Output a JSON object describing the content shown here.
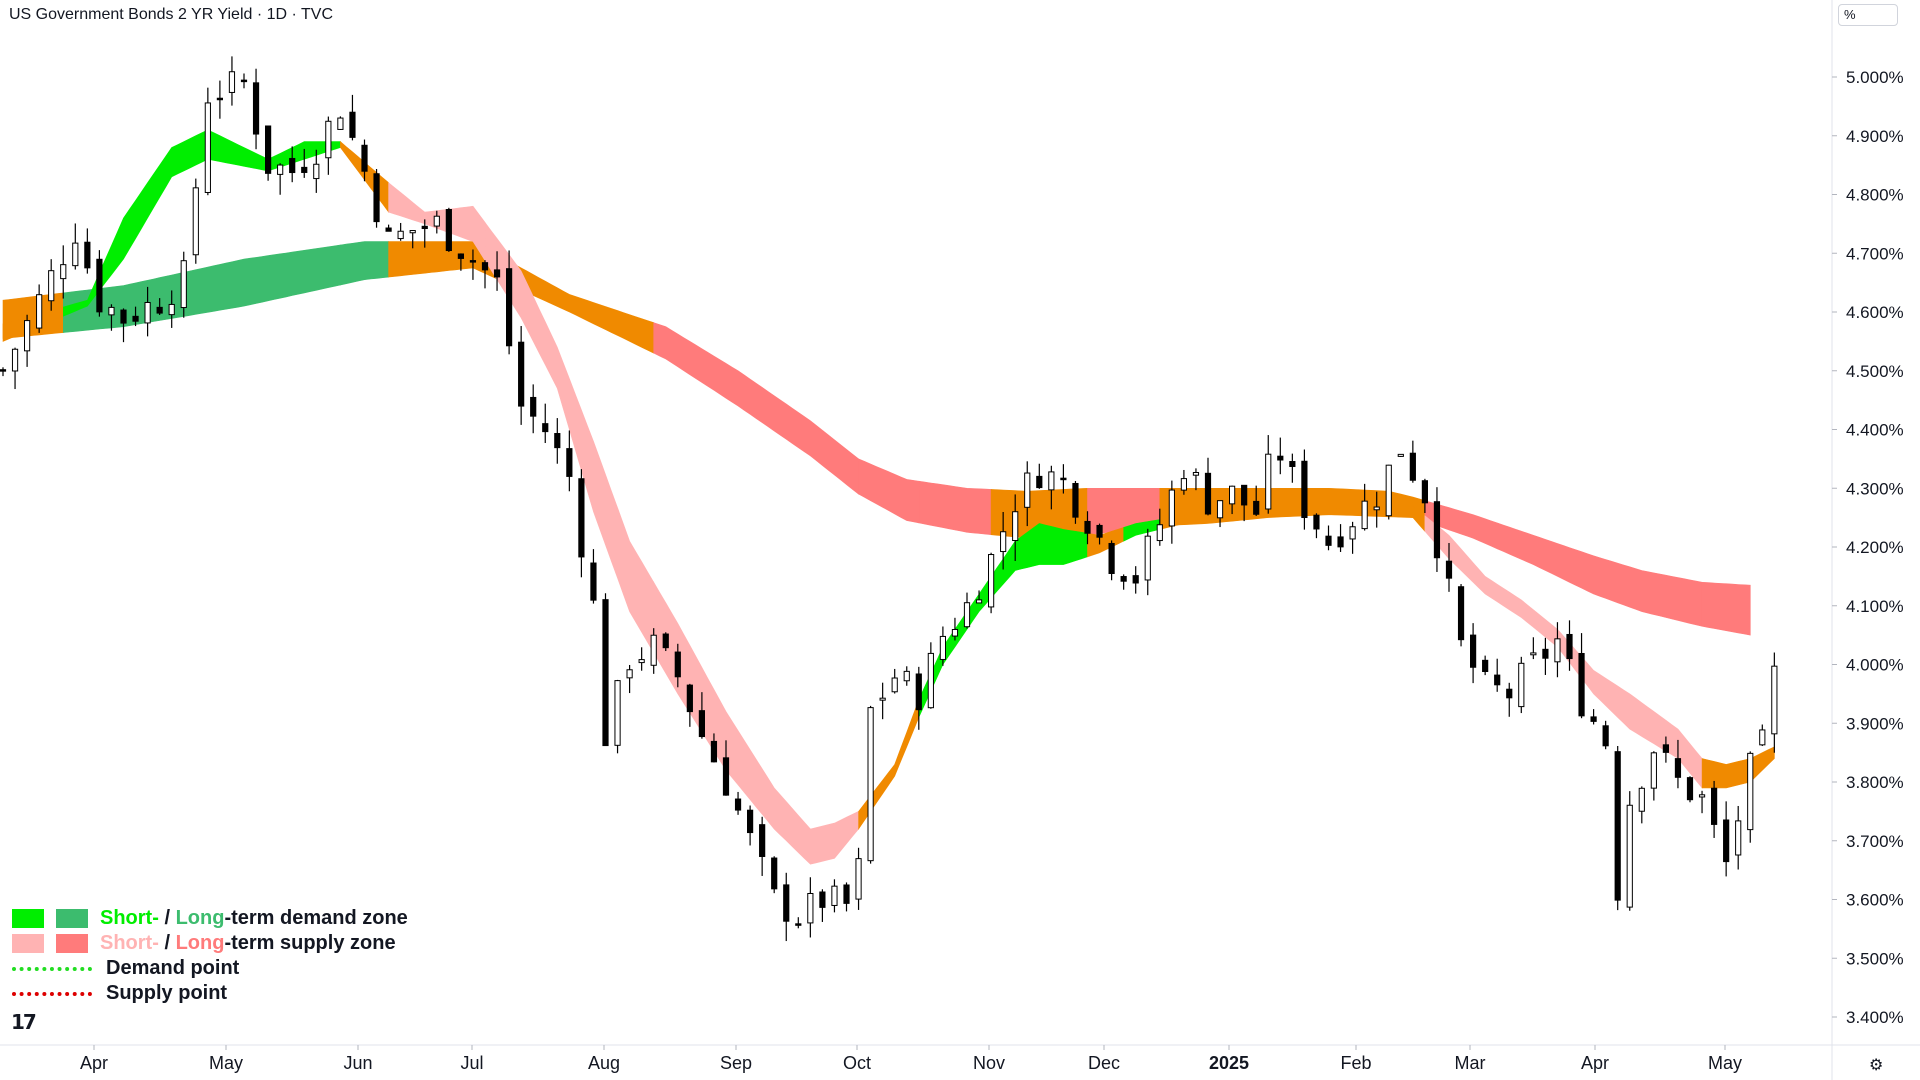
{
  "header": {
    "title": "US Government Bonds 2 YR Yield · 1D · TVC",
    "unit": "%"
  },
  "legend": {
    "demand_prefix_short": "Short-",
    "demand_sep": " / ",
    "demand_prefix_long": "Long",
    "demand_suffix": "-term demand zone",
    "supply_prefix_short": "Short-",
    "supply_sep": " / ",
    "supply_prefix_long": "Long",
    "supply_suffix": "-term supply zone",
    "demand_point": "Demand point",
    "supply_point": "Supply point"
  },
  "logo_text": "17",
  "settings_icon": "gear-icon",
  "colors": {
    "short_demand": "#00ee00",
    "long_demand": "#3cbc6e",
    "short_supply": "#ffb3b3",
    "long_supply": "#ff7b7b",
    "transition": "#f08a00",
    "demand_point": "#22dd22",
    "supply_point": "#dd0000",
    "candle_up_border": "#000000",
    "candle_up_fill": "#ffffff",
    "candle_down": "#000000"
  },
  "chart_data": {
    "type": "candlestick",
    "title": "US Government Bonds 2 YR Yield",
    "interval": "1D",
    "source": "TVC",
    "y_unit": "%",
    "ylim": [
      3.36,
      5.09
    ],
    "y_ticks": [
      "5.000%",
      "4.900%",
      "4.800%",
      "4.700%",
      "4.600%",
      "4.500%",
      "4.400%",
      "4.300%",
      "4.200%",
      "4.100%",
      "4.000%",
      "3.900%",
      "3.800%",
      "3.700%",
      "3.600%",
      "3.500%",
      "3.400%"
    ],
    "x_ticks": [
      "Apr",
      "May",
      "Jun",
      "Jul",
      "Aug",
      "Sep",
      "Oct",
      "Nov",
      "Dec",
      "2025",
      "Feb",
      "Mar",
      "Apr",
      "May"
    ],
    "x_tick_bold": "2025",
    "grid": false,
    "legend_position": "bottom-left",
    "close_path": [
      [
        0,
        4.5
      ],
      [
        3,
        4.62
      ],
      [
        6,
        4.74
      ],
      [
        8,
        4.62
      ],
      [
        10,
        4.59
      ],
      [
        13,
        4.62
      ],
      [
        15,
        4.66
      ],
      [
        17,
        4.97
      ],
      [
        20,
        4.99
      ],
      [
        22,
        4.85
      ],
      [
        24,
        4.84
      ],
      [
        26,
        4.88
      ],
      [
        28,
        4.95
      ],
      [
        30,
        4.84
      ],
      [
        32,
        4.72
      ],
      [
        34,
        4.74
      ],
      [
        36,
        4.75
      ],
      [
        38,
        4.71
      ],
      [
        41,
        4.65
      ],
      [
        43,
        4.44
      ],
      [
        45,
        4.4
      ],
      [
        47,
        4.32
      ],
      [
        49,
        4.1
      ],
      [
        50,
        3.88
      ],
      [
        52,
        4.01
      ],
      [
        54,
        4.03
      ],
      [
        56,
        3.98
      ],
      [
        58,
        3.88
      ],
      [
        60,
        3.8
      ],
      [
        62,
        3.7
      ],
      [
        64,
        3.6
      ],
      [
        66,
        3.57
      ],
      [
        68,
        3.6
      ],
      [
        70,
        3.59
      ],
      [
        71,
        3.65
      ],
      [
        72,
        3.92
      ],
      [
        74,
        3.98
      ],
      [
        76,
        3.95
      ],
      [
        78,
        4.05
      ],
      [
        80,
        4.1
      ],
      [
        82,
        4.18
      ],
      [
        84,
        4.28
      ],
      [
        86,
        4.33
      ],
      [
        88,
        4.31
      ],
      [
        90,
        4.25
      ],
      [
        92,
        4.18
      ],
      [
        94,
        4.15
      ],
      [
        96,
        4.24
      ],
      [
        98,
        4.34
      ],
      [
        100,
        4.28
      ],
      [
        102,
        4.29
      ],
      [
        104,
        4.26
      ],
      [
        105,
        4.33
      ],
      [
        106,
        4.36
      ],
      [
        108,
        4.27
      ],
      [
        110,
        4.21
      ],
      [
        112,
        4.25
      ],
      [
        114,
        4.29
      ],
      [
        116,
        4.37
      ],
      [
        118,
        4.29
      ],
      [
        119,
        4.21
      ],
      [
        121,
        4.03
      ],
      [
        123,
        3.96
      ],
      [
        125,
        3.95
      ],
      [
        127,
        4.0
      ],
      [
        129,
        4.04
      ],
      [
        131,
        3.94
      ],
      [
        133,
        3.87
      ],
      [
        134,
        3.62
      ],
      [
        135,
        3.77
      ],
      [
        137,
        3.86
      ],
      [
        139,
        3.8
      ],
      [
        141,
        3.77
      ],
      [
        143,
        3.66
      ],
      [
        145,
        3.82
      ],
      [
        146,
        3.86
      ],
      [
        147,
        3.98
      ]
    ],
    "long_term_band": [
      [
        0,
        4.555,
        4.62
      ],
      [
        10,
        4.575,
        4.645
      ],
      [
        20,
        4.61,
        4.69
      ],
      [
        30,
        4.655,
        4.72
      ],
      [
        39,
        4.675,
        4.72
      ],
      [
        47,
        4.6,
        4.63
      ],
      [
        55,
        4.52,
        4.575
      ],
      [
        61,
        4.44,
        4.5
      ],
      [
        67,
        4.355,
        4.415
      ],
      [
        71,
        4.29,
        4.35
      ],
      [
        75,
        4.245,
        4.315
      ],
      [
        80,
        4.225,
        4.3
      ],
      [
        85,
        4.215,
        4.295
      ],
      [
        90,
        4.22,
        4.3
      ],
      [
        95,
        4.235,
        4.3
      ],
      [
        100,
        4.24,
        4.3
      ],
      [
        105,
        4.25,
        4.3
      ],
      [
        110,
        4.255,
        4.3
      ],
      [
        115,
        4.255,
        4.295
      ],
      [
        117,
        4.25,
        4.285
      ],
      [
        122,
        4.215,
        4.255
      ],
      [
        127,
        4.17,
        4.22
      ],
      [
        132,
        4.12,
        4.185
      ],
      [
        136,
        4.09,
        4.16
      ],
      [
        141,
        4.065,
        4.14
      ],
      [
        145,
        4.05,
        4.135
      ]
    ],
    "short_term_band": [
      [
        0,
        4.55,
        4.58
      ],
      [
        7,
        4.61,
        4.62
      ],
      [
        10,
        4.69,
        4.76
      ],
      [
        14,
        4.83,
        4.88
      ],
      [
        17,
        4.86,
        4.91
      ],
      [
        22,
        4.84,
        4.86
      ],
      [
        25,
        4.86,
        4.89
      ],
      [
        28,
        4.88,
        4.89
      ],
      [
        32,
        4.77,
        4.82
      ],
      [
        35,
        4.75,
        4.77
      ],
      [
        39,
        4.72,
        4.78
      ],
      [
        43,
        4.59,
        4.67
      ],
      [
        46,
        4.47,
        4.54
      ],
      [
        49,
        4.26,
        4.38
      ],
      [
        52,
        4.09,
        4.21
      ],
      [
        56,
        3.95,
        4.07
      ],
      [
        60,
        3.82,
        3.92
      ],
      [
        64,
        3.72,
        3.79
      ],
      [
        67,
        3.66,
        3.72
      ],
      [
        69,
        3.67,
        3.73
      ],
      [
        71,
        3.72,
        3.75
      ],
      [
        74,
        3.81,
        3.83
      ],
      [
        76,
        3.91,
        3.94
      ],
      [
        78,
        4.0,
        4.03
      ],
      [
        81,
        4.09,
        4.12
      ],
      [
        84,
        4.16,
        4.21
      ],
      [
        86,
        4.17,
        4.24
      ],
      [
        88,
        4.17,
        4.23
      ],
      [
        91,
        4.19,
        4.22
      ],
      [
        94,
        4.22,
        4.24
      ],
      [
        100,
        4.25,
        4.26
      ],
      [
        110,
        4.255,
        4.265
      ],
      [
        117,
        4.25,
        4.27
      ],
      [
        120,
        4.18,
        4.22
      ],
      [
        123,
        4.12,
        4.15
      ],
      [
        126,
        4.08,
        4.11
      ],
      [
        129,
        4.03,
        4.06
      ],
      [
        132,
        3.95,
        3.99
      ],
      [
        135,
        3.89,
        3.95
      ],
      [
        139,
        3.84,
        3.89
      ],
      [
        141,
        3.79,
        3.84
      ],
      [
        143,
        3.79,
        3.83
      ],
      [
        145,
        3.8,
        3.84
      ],
      [
        147,
        3.84,
        3.86
      ]
    ],
    "zone_phases": [
      {
        "from": 0,
        "to": 5,
        "long": "transition",
        "short": "transition"
      },
      {
        "from": 5,
        "to": 28,
        "long": "long_demand",
        "short": "short_demand"
      },
      {
        "from": 28,
        "to": 32,
        "long": "long_demand",
        "short": "transition"
      },
      {
        "from": 32,
        "to": 40,
        "long": "transition",
        "short": "short_supply"
      },
      {
        "from": 40,
        "to": 54,
        "long": "transition",
        "short": "short_supply"
      },
      {
        "from": 54,
        "to": 71,
        "long": "long_supply",
        "short": "short_supply"
      },
      {
        "from": 71,
        "to": 76,
        "long": "long_supply",
        "short": "transition"
      },
      {
        "from": 76,
        "to": 82,
        "long": "long_supply",
        "short": "short_demand"
      },
      {
        "from": 82,
        "to": 90,
        "long": "transition",
        "short": "short_demand"
      },
      {
        "from": 90,
        "to": 93,
        "long": "long_supply",
        "short": "transition"
      },
      {
        "from": 93,
        "to": 96,
        "long": "long_supply",
        "short": "short_demand"
      },
      {
        "from": 96,
        "to": 118,
        "long": "transition",
        "short": "transition"
      },
      {
        "from": 118,
        "to": 141,
        "long": "long_supply",
        "short": "short_supply"
      },
      {
        "from": 141,
        "to": 148,
        "long": "long_supply",
        "short": "transition"
      }
    ]
  }
}
